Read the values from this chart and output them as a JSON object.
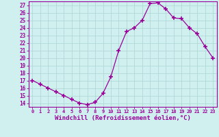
{
  "x": [
    0,
    1,
    2,
    3,
    4,
    5,
    6,
    7,
    8,
    9,
    10,
    11,
    12,
    13,
    14,
    15,
    16,
    17,
    18,
    19,
    20,
    21,
    22,
    23
  ],
  "y": [
    17,
    16.5,
    16,
    15.5,
    15,
    14.5,
    14,
    13.8,
    14.1,
    15.3,
    17.5,
    21,
    23.5,
    24,
    25,
    27.2,
    27.3,
    26.5,
    25.3,
    25.2,
    24,
    23.2,
    21.5,
    20
  ],
  "line_color": "#990099",
  "marker": "+",
  "marker_size": 4,
  "bg_color": "#d0f0f0",
  "grid_color": "#b0d8d8",
  "xlabel": "Windchill (Refroidissement éolien,°C)",
  "xlabel_fontsize": 6.5,
  "ylabel_ticks": [
    14,
    15,
    16,
    17,
    18,
    19,
    20,
    21,
    22,
    23,
    24,
    25,
    26,
    27
  ],
  "xlim": [
    -0.5,
    23.5
  ],
  "ylim": [
    13.5,
    27.5
  ]
}
